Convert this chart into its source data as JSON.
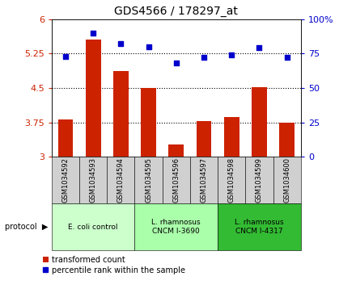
{
  "title": "GDS4566 / 178297_at",
  "samples": [
    "GSM1034592",
    "GSM1034593",
    "GSM1034594",
    "GSM1034595",
    "GSM1034596",
    "GSM1034597",
    "GSM1034598",
    "GSM1034599",
    "GSM1034600"
  ],
  "bar_values": [
    3.82,
    5.55,
    4.87,
    4.5,
    3.27,
    3.78,
    3.87,
    4.52,
    3.75
  ],
  "dot_values": [
    73,
    90,
    82,
    80,
    68,
    72,
    74,
    79,
    72
  ],
  "ylim_left": [
    3.0,
    6.0
  ],
  "ylim_right": [
    0,
    100
  ],
  "yticks_left": [
    3.0,
    3.75,
    4.5,
    5.25,
    6.0
  ],
  "ytick_labels_left": [
    "3",
    "3.75",
    "4.5",
    "5.25",
    "6"
  ],
  "yticks_right": [
    0,
    25,
    50,
    75,
    100
  ],
  "ytick_labels_right": [
    "0",
    "25",
    "50",
    "75",
    "100%"
  ],
  "hlines": [
    3.75,
    4.5,
    5.25
  ],
  "bar_color": "#cc2200",
  "dot_color": "#0000cc",
  "protocols": [
    {
      "label": "E. coli control",
      "start": 0,
      "end": 3,
      "color": "#ccffcc"
    },
    {
      "label": "L. rhamnosus\nCNCM I-3690",
      "start": 3,
      "end": 6,
      "color": "#aaffaa"
    },
    {
      "label": "L. rhamnosus\nCNCM I-4317",
      "start": 6,
      "end": 9,
      "color": "#33bb33"
    }
  ],
  "legend_bar_label": "transformed count",
  "legend_dot_label": "percentile rank within the sample",
  "bar_width": 0.55,
  "bar_color_left_tick": "#cc2200",
  "dot_color_right_tick": "#0000cc",
  "sample_box_color": "#d0d0d0",
  "fig_bg": "#ffffff"
}
